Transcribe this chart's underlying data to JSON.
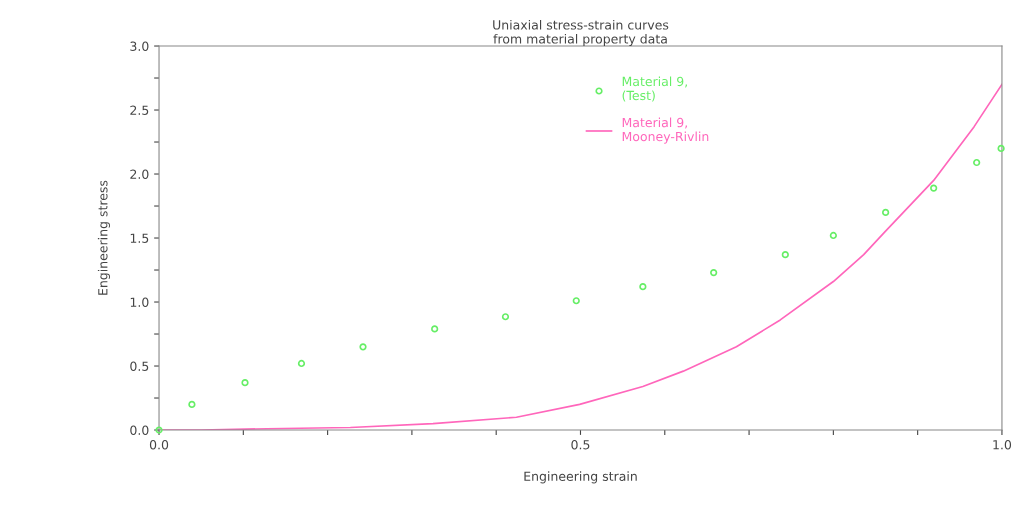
{
  "chart_data": {
    "type": "scatter",
    "title": "Uniaxial stress-strain curves\nfrom material property data",
    "xlabel": "Engineering strain",
    "ylabel": "Engineering stress",
    "xlim": [
      0,
      1
    ],
    "ylim": [
      0,
      3
    ],
    "xticks": [
      {
        "value": 0,
        "label": "0.0"
      },
      {
        "value": 0.1,
        "label": null
      },
      {
        "value": 0.2,
        "label": null
      },
      {
        "value": 0.3,
        "label": null
      },
      {
        "value": 0.4,
        "label": null
      },
      0.5,
      {
        "value": 0.6,
        "label": null
      },
      {
        "value": 0.7,
        "label": null
      },
      {
        "value": 0.8,
        "label": null
      },
      {
        "value": 0.9,
        "label": null
      },
      {
        "value": 1,
        "label": "1.0"
      }
    ],
    "yticks": [
      {
        "value": 0,
        "label": "0.0"
      },
      {
        "value": 0.25,
        "label": null
      },
      0.5,
      {
        "value": 0.75,
        "label": null
      },
      {
        "value": 1,
        "label": "1.0"
      },
      {
        "value": 1.25,
        "label": null
      },
      1.5,
      {
        "value": 1.75,
        "label": null
      },
      {
        "value": 2,
        "label": "2.0"
      },
      {
        "value": 2.25,
        "label": null
      },
      2.5,
      {
        "value": 2.75,
        "label": null
      },
      {
        "value": 3,
        "label": "3.0"
      }
    ],
    "grid": false,
    "legend": "top",
    "series": [
      {
        "name": "Material 9,\n(Test)",
        "marker": "circle",
        "color": "#66ee66",
        "x": [
          0,
          0.039,
          0.102,
          0.169,
          0.242,
          0.327,
          0.411,
          0.495,
          0.574,
          0.658,
          0.743,
          0.8,
          0.862,
          0.919,
          0.97,
          0.999
        ],
        "values": [
          0,
          0.2,
          0.37,
          0.52,
          0.65,
          0.79,
          0.885,
          1.01,
          1.12,
          1.23,
          1.37,
          1.52,
          1.7,
          1.89,
          2.09,
          2.2
        ]
      },
      {
        "name": "Material 9,\nMooney-Rivlin",
        "type": "line",
        "marker": "none",
        "line_style": "solid",
        "color": "#ff66bb",
        "x": [
          0,
          0.05,
          0.128,
          0.227,
          0.325,
          0.424,
          0.499,
          0.574,
          0.622,
          0.685,
          0.737,
          0.8,
          0.836,
          0.86,
          0.919,
          0.967,
          1.0
        ],
        "values": [
          0,
          0,
          0.01,
          0.02,
          0.05,
          0.1,
          0.2,
          0.34,
          0.46,
          0.65,
          0.86,
          1.16,
          1.37,
          1.54,
          1.95,
          2.37,
          2.7
        ]
      }
    ]
  }
}
